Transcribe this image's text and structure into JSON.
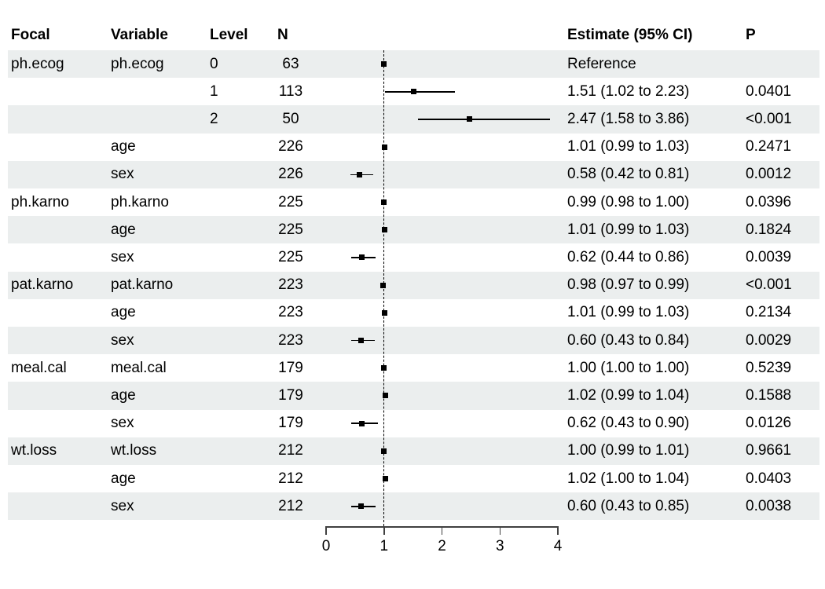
{
  "header": {
    "focal": "Focal",
    "variable": "Variable",
    "level": "Level",
    "n": "N",
    "estimate": "Estimate (95% CI)",
    "p": "P"
  },
  "colors": {
    "stripe": "#ebeeee",
    "marker": "#000000",
    "ci_line": "#000000",
    "reference_line": "#000000",
    "axis": "#404040",
    "text": "#000000",
    "background": "#ffffff"
  },
  "chart_data": {
    "type": "scatter",
    "variant": "forest-plot",
    "title": "",
    "xlabel": "",
    "x_ticks": [
      0,
      1,
      2,
      3,
      4
    ],
    "xlim": [
      0,
      4.1
    ],
    "reference_line_x": 1,
    "grid": false,
    "legend": false,
    "columns": [
      "Focal",
      "Variable",
      "Level",
      "N",
      "Estimate (95% CI)",
      "P"
    ],
    "rows": [
      {
        "focal": "ph.ecog",
        "variable": "ph.ecog",
        "level": "0",
        "n": "63",
        "estimate": 1.0,
        "ci_low": null,
        "ci_high": null,
        "estimate_label": "Reference",
        "p": ""
      },
      {
        "focal": "",
        "variable": "",
        "level": "1",
        "n": "113",
        "estimate": 1.51,
        "ci_low": 1.02,
        "ci_high": 2.23,
        "estimate_label": "1.51 (1.02 to 2.23)",
        "p": "0.0401"
      },
      {
        "focal": "",
        "variable": "",
        "level": "2",
        "n": "50",
        "estimate": 2.47,
        "ci_low": 1.58,
        "ci_high": 3.86,
        "estimate_label": "2.47 (1.58 to 3.86)",
        "p": "<0.001"
      },
      {
        "focal": "",
        "variable": "age",
        "level": "",
        "n": "226",
        "estimate": 1.01,
        "ci_low": 0.99,
        "ci_high": 1.03,
        "estimate_label": "1.01 (0.99 to 1.03)",
        "p": "0.2471"
      },
      {
        "focal": "",
        "variable": "sex",
        "level": "",
        "n": "226",
        "estimate": 0.58,
        "ci_low": 0.42,
        "ci_high": 0.81,
        "estimate_label": "0.58 (0.42 to 0.81)",
        "p": "0.0012"
      },
      {
        "focal": "ph.karno",
        "variable": "ph.karno",
        "level": "",
        "n": "225",
        "estimate": 0.99,
        "ci_low": 0.98,
        "ci_high": 1.0,
        "estimate_label": "0.99 (0.98 to 1.00)",
        "p": "0.0396"
      },
      {
        "focal": "",
        "variable": "age",
        "level": "",
        "n": "225",
        "estimate": 1.01,
        "ci_low": 0.99,
        "ci_high": 1.03,
        "estimate_label": "1.01 (0.99 to 1.03)",
        "p": "0.1824"
      },
      {
        "focal": "",
        "variable": "sex",
        "level": "",
        "n": "225",
        "estimate": 0.62,
        "ci_low": 0.44,
        "ci_high": 0.86,
        "estimate_label": "0.62 (0.44 to 0.86)",
        "p": "0.0039"
      },
      {
        "focal": "pat.karno",
        "variable": "pat.karno",
        "level": "",
        "n": "223",
        "estimate": 0.98,
        "ci_low": 0.97,
        "ci_high": 0.99,
        "estimate_label": "0.98 (0.97 to 0.99)",
        "p": "<0.001"
      },
      {
        "focal": "",
        "variable": "age",
        "level": "",
        "n": "223",
        "estimate": 1.01,
        "ci_low": 0.99,
        "ci_high": 1.03,
        "estimate_label": "1.01 (0.99 to 1.03)",
        "p": "0.2134"
      },
      {
        "focal": "",
        "variable": "sex",
        "level": "",
        "n": "223",
        "estimate": 0.6,
        "ci_low": 0.43,
        "ci_high": 0.84,
        "estimate_label": "0.60 (0.43 to 0.84)",
        "p": "0.0029"
      },
      {
        "focal": "meal.cal",
        "variable": "meal.cal",
        "level": "",
        "n": "179",
        "estimate": 1.0,
        "ci_low": 1.0,
        "ci_high": 1.0,
        "estimate_label": "1.00 (1.00 to 1.00)",
        "p": "0.5239"
      },
      {
        "focal": "",
        "variable": "age",
        "level": "",
        "n": "179",
        "estimate": 1.02,
        "ci_low": 0.99,
        "ci_high": 1.04,
        "estimate_label": "1.02 (0.99 to 1.04)",
        "p": "0.1588"
      },
      {
        "focal": "",
        "variable": "sex",
        "level": "",
        "n": "179",
        "estimate": 0.62,
        "ci_low": 0.43,
        "ci_high": 0.9,
        "estimate_label": "0.62 (0.43 to 0.90)",
        "p": "0.0126"
      },
      {
        "focal": "wt.loss",
        "variable": "wt.loss",
        "level": "",
        "n": "212",
        "estimate": 1.0,
        "ci_low": 0.99,
        "ci_high": 1.01,
        "estimate_label": "1.00 (0.99 to 1.01)",
        "p": "0.9661"
      },
      {
        "focal": "",
        "variable": "age",
        "level": "",
        "n": "212",
        "estimate": 1.02,
        "ci_low": 1.0,
        "ci_high": 1.04,
        "estimate_label": "1.02 (1.00 to 1.04)",
        "p": "0.0403"
      },
      {
        "focal": "",
        "variable": "sex",
        "level": "",
        "n": "212",
        "estimate": 0.6,
        "ci_low": 0.43,
        "ci_high": 0.85,
        "estimate_label": "0.60 (0.43 to 0.85)",
        "p": "0.0038"
      }
    ]
  }
}
